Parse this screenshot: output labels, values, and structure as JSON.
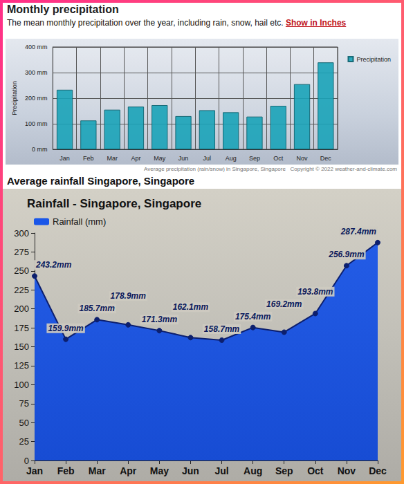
{
  "page": {
    "title": "Monthly precipitation",
    "description": "The mean monthly precipitation over the year, including rain, snow, hail etc.",
    "link": "Show in Inches",
    "section_title": "Average rainfall Singapore, Singapore"
  },
  "chart_data": [
    {
      "type": "bar",
      "ylabel": "Precipitation",
      "caption": "Average precipitation (rain/snow) in Singapore, Singapore",
      "source": "Copyright © 2022 weather-and-climate.com",
      "categories": [
        "Jan",
        "Feb",
        "Mar",
        "Apr",
        "May",
        "Jun",
        "Jul",
        "Aug",
        "Sep",
        "Oct",
        "Nov",
        "Dec"
      ],
      "series": [
        {
          "name": "Precipitation",
          "color": "#1aa3b8",
          "values": [
            233,
            113,
            155,
            167,
            173,
            130,
            153,
            145,
            128,
            170,
            255,
            340
          ]
        }
      ],
      "ylim": [
        0,
        400
      ],
      "yticks": [
        {
          "value": 0,
          "label": "0 mm"
        },
        {
          "value": 100,
          "label": "100 mm"
        },
        {
          "value": 200,
          "label": "200 mm"
        },
        {
          "value": 300,
          "label": "300 mm"
        },
        {
          "value": 400,
          "label": "400 mm"
        }
      ],
      "grid": true,
      "legend": "right"
    },
    {
      "type": "area",
      "title": "Rainfall - Singapore, Singapore",
      "categories": [
        "Jan",
        "Feb",
        "Mar",
        "Apr",
        "May",
        "Jun",
        "Jul",
        "Aug",
        "Sep",
        "Oct",
        "Nov",
        "Dec"
      ],
      "series": [
        {
          "name": "Rainfall (mm)",
          "color": "#1a56e8",
          "values": [
            243.2,
            159.9,
            185.7,
            178.9,
            171.3,
            162.1,
            158.7,
            175.4,
            169.2,
            193.8,
            256.9,
            287.4
          ],
          "value_labels": [
            "243.2mm",
            "159.9mm",
            "185.7mm",
            "178.9mm",
            "171.3mm",
            "162.1mm",
            "158.7mm",
            "175.4mm",
            "169.2mm",
            "193.8mm",
            "256.9mm",
            "287.4mm"
          ]
        }
      ],
      "ylim": [
        0,
        300
      ],
      "yticks": [
        0,
        25,
        50,
        75,
        100,
        125,
        150,
        175,
        200,
        225,
        250,
        275,
        300
      ],
      "grid": false,
      "data_labels": true,
      "marker": "circle",
      "legend": "upper left"
    }
  ]
}
